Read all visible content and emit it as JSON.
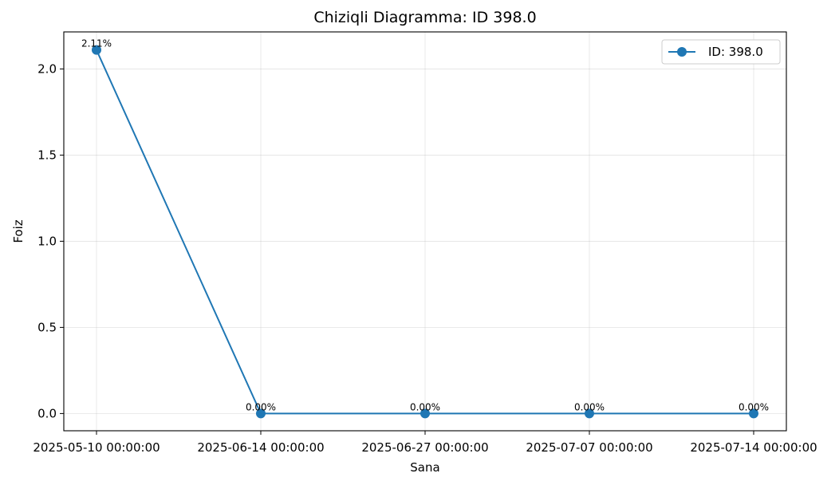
{
  "chart_data": {
    "type": "line",
    "title": "Chiziqli Diagramma: ID 398.0",
    "xlabel": "Sana",
    "ylabel": "Foiz",
    "categories": [
      "2025-05-10 00:00:00",
      "2025-06-14 00:00:00",
      "2025-06-27 00:00:00",
      "2025-07-07 00:00:00",
      "2025-07-14 00:00:00"
    ],
    "series": [
      {
        "name": "ID: 398.0",
        "values": [
          2.11,
          0.0,
          0.0,
          0.0,
          0.0
        ],
        "data_labels": [
          "2.11%",
          "0.00%",
          "0.00%",
          "0.00%",
          "0.00%"
        ],
        "color": "#1f77b4",
        "marker": "circle"
      }
    ],
    "ylim": [
      -0.1,
      2.215
    ],
    "yticks": [
      0.0,
      0.5,
      1.0,
      1.5,
      2.0
    ],
    "ytick_labels": [
      "0.0",
      "0.5",
      "1.0",
      "1.5",
      "2.0"
    ],
    "grid": true,
    "legend_position": "top-right"
  }
}
